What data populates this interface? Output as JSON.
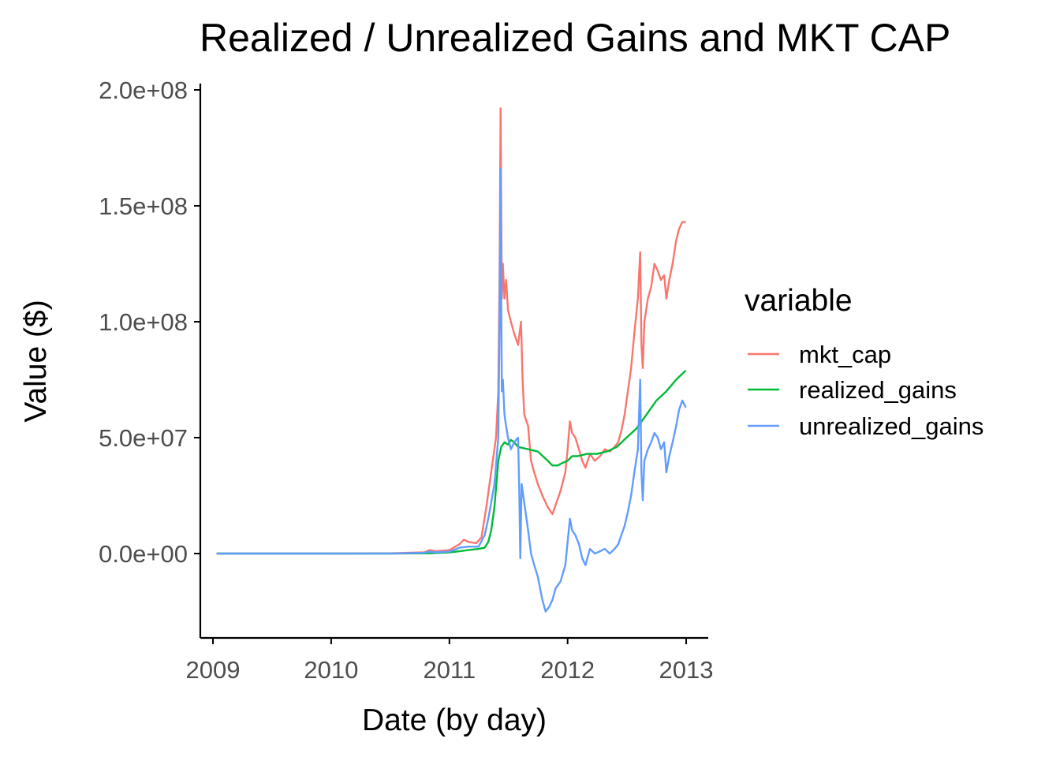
{
  "chart_data": {
    "type": "line",
    "title": "Realized / Unrealized Gains and MKT CAP",
    "xlabel": "Date (by day)",
    "ylabel": "Value ($)",
    "x_ticks": [
      "2009",
      "2010",
      "2011",
      "2012",
      "2013"
    ],
    "y_ticks": [
      "0.0e+00",
      "5.0e+07",
      "1.0e+08",
      "1.5e+08",
      "2.0e+08"
    ],
    "xlim": [
      "2009-01-01",
      "2013-02-15"
    ],
    "ylim": [
      -36000000,
      202000000
    ],
    "grid": false,
    "legend": {
      "title": "variable",
      "position": "right"
    },
    "series": [
      {
        "name": "mkt_cap",
        "color": "#F8766D",
        "points": [
          [
            "2009-01-12",
            0
          ],
          [
            "2009-07-01",
            0
          ],
          [
            "2010-01-01",
            0
          ],
          [
            "2010-07-01",
            100000
          ],
          [
            "2010-10-15",
            500000
          ],
          [
            "2010-11-01",
            1500000
          ],
          [
            "2010-11-20",
            1000000
          ],
          [
            "2011-01-01",
            1500000
          ],
          [
            "2011-02-01",
            4000000
          ],
          [
            "2011-02-15",
            6000000
          ],
          [
            "2011-03-01",
            5000000
          ],
          [
            "2011-03-25",
            4500000
          ],
          [
            "2011-04-10",
            7000000
          ],
          [
            "2011-04-25",
            20000000
          ],
          [
            "2011-05-05",
            30000000
          ],
          [
            "2011-05-15",
            40000000
          ],
          [
            "2011-05-25",
            50000000
          ],
          [
            "2011-06-01",
            70000000
          ],
          [
            "2011-06-05",
            120000000
          ],
          [
            "2011-06-08",
            192000000
          ],
          [
            "2011-06-10",
            150000000
          ],
          [
            "2011-06-12",
            110000000
          ],
          [
            "2011-06-15",
            125000000
          ],
          [
            "2011-06-20",
            110000000
          ],
          [
            "2011-06-25",
            118000000
          ],
          [
            "2011-07-01",
            105000000
          ],
          [
            "2011-07-10",
            100000000
          ],
          [
            "2011-07-20",
            95000000
          ],
          [
            "2011-08-01",
            90000000
          ],
          [
            "2011-08-10",
            100000000
          ],
          [
            "2011-08-15",
            75000000
          ],
          [
            "2011-08-20",
            60000000
          ],
          [
            "2011-09-01",
            55000000
          ],
          [
            "2011-09-10",
            40000000
          ],
          [
            "2011-09-20",
            35000000
          ],
          [
            "2011-10-01",
            30000000
          ],
          [
            "2011-10-15",
            25000000
          ],
          [
            "2011-11-01",
            20000000
          ],
          [
            "2011-11-15",
            17000000
          ],
          [
            "2011-11-25",
            21000000
          ],
          [
            "2011-12-10",
            27000000
          ],
          [
            "2011-12-25",
            35000000
          ],
          [
            "2012-01-01",
            45000000
          ],
          [
            "2012-01-08",
            57000000
          ],
          [
            "2012-01-15",
            52000000
          ],
          [
            "2012-01-25",
            50000000
          ],
          [
            "2012-02-05",
            45000000
          ],
          [
            "2012-02-15",
            40000000
          ],
          [
            "2012-02-25",
            37000000
          ],
          [
            "2012-03-10",
            43000000
          ],
          [
            "2012-03-25",
            40000000
          ],
          [
            "2012-04-10",
            42000000
          ],
          [
            "2012-04-25",
            45000000
          ],
          [
            "2012-05-10",
            44000000
          ],
          [
            "2012-05-25",
            46000000
          ],
          [
            "2012-06-05",
            48000000
          ],
          [
            "2012-06-15",
            53000000
          ],
          [
            "2012-06-25",
            60000000
          ],
          [
            "2012-07-05",
            70000000
          ],
          [
            "2012-07-15",
            80000000
          ],
          [
            "2012-07-25",
            95000000
          ],
          [
            "2012-08-05",
            110000000
          ],
          [
            "2012-08-12",
            130000000
          ],
          [
            "2012-08-16",
            90000000
          ],
          [
            "2012-08-20",
            80000000
          ],
          [
            "2012-08-25",
            100000000
          ],
          [
            "2012-09-05",
            110000000
          ],
          [
            "2012-09-15",
            115000000
          ],
          [
            "2012-09-25",
            125000000
          ],
          [
            "2012-10-05",
            122000000
          ],
          [
            "2012-10-15",
            118000000
          ],
          [
            "2012-10-25",
            120000000
          ],
          [
            "2012-11-01",
            110000000
          ],
          [
            "2012-11-10",
            118000000
          ],
          [
            "2012-11-20",
            125000000
          ],
          [
            "2012-12-01",
            135000000
          ],
          [
            "2012-12-10",
            140000000
          ],
          [
            "2012-12-20",
            143000000
          ],
          [
            "2012-12-31",
            143000000
          ]
        ]
      },
      {
        "name": "realized_gains",
        "color": "#00BA38",
        "points": [
          [
            "2009-01-12",
            0
          ],
          [
            "2010-01-01",
            0
          ],
          [
            "2010-07-01",
            0
          ],
          [
            "2010-11-01",
            100000
          ],
          [
            "2011-01-01",
            500000
          ],
          [
            "2011-02-01",
            1000000
          ],
          [
            "2011-03-01",
            1500000
          ],
          [
            "2011-04-01",
            2000000
          ],
          [
            "2011-04-20",
            2500000
          ],
          [
            "2011-05-01",
            5000000
          ],
          [
            "2011-05-10",
            10000000
          ],
          [
            "2011-05-20",
            20000000
          ],
          [
            "2011-06-01",
            40000000
          ],
          [
            "2011-06-10",
            46000000
          ],
          [
            "2011-06-20",
            48000000
          ],
          [
            "2011-07-01",
            47000000
          ],
          [
            "2011-07-10",
            49000000
          ],
          [
            "2011-07-20",
            48000000
          ],
          [
            "2011-08-01",
            46000000
          ],
          [
            "2011-09-01",
            45000000
          ],
          [
            "2011-10-01",
            44000000
          ],
          [
            "2011-11-01",
            40000000
          ],
          [
            "2011-11-15",
            38000000
          ],
          [
            "2011-12-01",
            38000000
          ],
          [
            "2011-12-15",
            39000000
          ],
          [
            "2012-01-01",
            40000000
          ],
          [
            "2012-01-15",
            42000000
          ],
          [
            "2012-02-01",
            42000000
          ],
          [
            "2012-03-01",
            43000000
          ],
          [
            "2012-04-01",
            43000000
          ],
          [
            "2012-05-01",
            44000000
          ],
          [
            "2012-06-01",
            46000000
          ],
          [
            "2012-07-01",
            50000000
          ],
          [
            "2012-08-01",
            54000000
          ],
          [
            "2012-09-01",
            60000000
          ],
          [
            "2012-10-01",
            66000000
          ],
          [
            "2012-11-01",
            70000000
          ],
          [
            "2012-12-01",
            75000000
          ],
          [
            "2012-12-31",
            79000000
          ]
        ]
      },
      {
        "name": "unrealized_gains",
        "color": "#619CFF",
        "points": [
          [
            "2009-01-12",
            0
          ],
          [
            "2010-01-01",
            0
          ],
          [
            "2010-07-01",
            0
          ],
          [
            "2010-10-15",
            300000
          ],
          [
            "2010-11-01",
            800000
          ],
          [
            "2010-11-20",
            500000
          ],
          [
            "2011-01-01",
            800000
          ],
          [
            "2011-02-01",
            2500000
          ],
          [
            "2011-03-01",
            3000000
          ],
          [
            "2011-04-01",
            3000000
          ],
          [
            "2011-04-20",
            8000000
          ],
          [
            "2011-05-01",
            15000000
          ],
          [
            "2011-05-10",
            22000000
          ],
          [
            "2011-05-20",
            30000000
          ],
          [
            "2011-06-01",
            50000000
          ],
          [
            "2011-06-05",
            100000000
          ],
          [
            "2011-06-08",
            166000000
          ],
          [
            "2011-06-10",
            110000000
          ],
          [
            "2011-06-12",
            70000000
          ],
          [
            "2011-06-15",
            75000000
          ],
          [
            "2011-06-20",
            60000000
          ],
          [
            "2011-06-25",
            55000000
          ],
          [
            "2011-07-01",
            50000000
          ],
          [
            "2011-07-10",
            45000000
          ],
          [
            "2011-07-20",
            48000000
          ],
          [
            "2011-08-01",
            50000000
          ],
          [
            "2011-08-05",
            25000000
          ],
          [
            "2011-08-08",
            -2000000
          ],
          [
            "2011-08-12",
            30000000
          ],
          [
            "2011-08-20",
            22000000
          ],
          [
            "2011-09-01",
            10000000
          ],
          [
            "2011-09-10",
            0
          ],
          [
            "2011-09-20",
            -5000000
          ],
          [
            "2011-10-01",
            -10000000
          ],
          [
            "2011-10-15",
            -20000000
          ],
          [
            "2011-10-25",
            -25000000
          ],
          [
            "2011-11-05",
            -23000000
          ],
          [
            "2011-11-15",
            -20000000
          ],
          [
            "2011-11-25",
            -15000000
          ],
          [
            "2011-12-10",
            -12000000
          ],
          [
            "2011-12-25",
            -5000000
          ],
          [
            "2012-01-01",
            5000000
          ],
          [
            "2012-01-08",
            15000000
          ],
          [
            "2012-01-15",
            10000000
          ],
          [
            "2012-01-25",
            8000000
          ],
          [
            "2012-02-05",
            4000000
          ],
          [
            "2012-02-15",
            -2000000
          ],
          [
            "2012-02-25",
            -5000000
          ],
          [
            "2012-03-10",
            2000000
          ],
          [
            "2012-03-25",
            0
          ],
          [
            "2012-04-10",
            1000000
          ],
          [
            "2012-04-25",
            2000000
          ],
          [
            "2012-05-10",
            0
          ],
          [
            "2012-05-25",
            2000000
          ],
          [
            "2012-06-05",
            4000000
          ],
          [
            "2012-06-15",
            8000000
          ],
          [
            "2012-06-25",
            12000000
          ],
          [
            "2012-07-05",
            18000000
          ],
          [
            "2012-07-15",
            25000000
          ],
          [
            "2012-07-25",
            35000000
          ],
          [
            "2012-08-05",
            45000000
          ],
          [
            "2012-08-12",
            75000000
          ],
          [
            "2012-08-16",
            35000000
          ],
          [
            "2012-08-20",
            23000000
          ],
          [
            "2012-08-25",
            40000000
          ],
          [
            "2012-09-05",
            45000000
          ],
          [
            "2012-09-15",
            48000000
          ],
          [
            "2012-09-25",
            52000000
          ],
          [
            "2012-10-05",
            50000000
          ],
          [
            "2012-10-15",
            45000000
          ],
          [
            "2012-10-25",
            48000000
          ],
          [
            "2012-11-01",
            35000000
          ],
          [
            "2012-11-10",
            42000000
          ],
          [
            "2012-11-20",
            48000000
          ],
          [
            "2012-12-01",
            55000000
          ],
          [
            "2012-12-10",
            62000000
          ],
          [
            "2012-12-20",
            66000000
          ],
          [
            "2012-12-31",
            63000000
          ]
        ]
      }
    ]
  }
}
